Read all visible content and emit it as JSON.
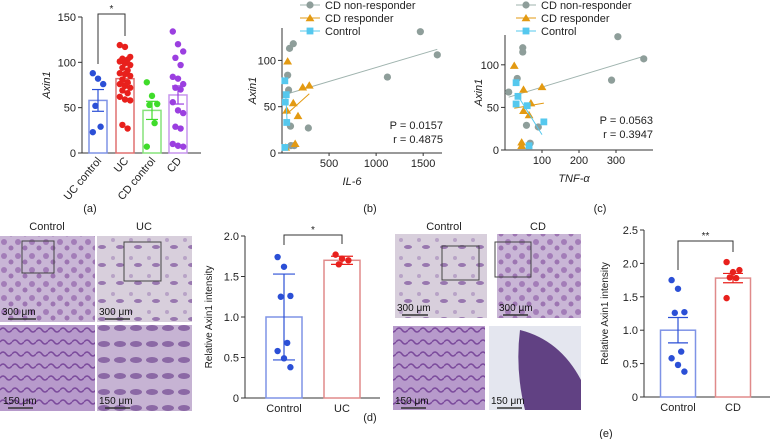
{
  "panel_labels": {
    "a": "(a)",
    "b": "(b)",
    "c": "(c)",
    "d": "(d)",
    "e": "(e)"
  },
  "histology": {
    "d": {
      "titles": [
        "Control",
        "UC"
      ],
      "scale_top": "300 μm",
      "scale_bottom": "150 μm"
    },
    "e": {
      "titles": [
        "Control",
        "CD"
      ],
      "scale_top": "300 μm",
      "scale_bottom": "150 μm"
    }
  },
  "colors": {
    "uc_control": "#2b4fd6",
    "uc": "#e8201c",
    "cd_control": "#3fdc2a",
    "cd": "#9b3fe0",
    "nonresponder": "#8e9e9a",
    "responder": "#e39a12",
    "control_sq": "#55c8ee",
    "bar_blue": "#7f93e6",
    "bar_red": "#e08a8a"
  },
  "chart_data": [
    {
      "id": "a",
      "type": "bar",
      "title": "",
      "xlabel": "",
      "ylabel": "Axin1",
      "ylim": [
        0,
        150
      ],
      "yticks": [
        "0",
        "50",
        "100",
        "150"
      ],
      "categories": [
        "UC control",
        "UC",
        "CD control",
        "CD"
      ],
      "means": [
        58,
        82,
        47,
        64
      ],
      "sem": [
        12,
        5,
        10,
        10
      ],
      "points": [
        [
          88,
          82,
          76,
          52,
          29,
          23
        ],
        [
          119,
          117,
          106,
          104,
          103,
          101,
          99,
          97,
          94,
          91,
          88,
          87,
          85,
          81,
          78,
          76,
          74,
          72,
          69,
          66,
          62,
          59,
          58,
          31,
          27
        ],
        [
          78,
          63,
          54,
          53,
          33,
          7
        ],
        [
          134,
          120,
          112,
          105,
          97,
          84,
          82,
          76,
          72,
          70,
          56,
          47,
          44,
          29,
          27,
          10,
          8,
          7
        ]
      ],
      "significance": [
        {
          "from": "UC control",
          "to": "UC",
          "label": "*"
        }
      ]
    },
    {
      "id": "b",
      "type": "scatter",
      "xlabel": "IL-6",
      "ylabel": "Axin1",
      "xlim": [
        0,
        1700
      ],
      "ylim": [
        0,
        135
      ],
      "xticks": [
        "500",
        "1000",
        "1500"
      ],
      "yticks": [
        "0",
        "50",
        "100"
      ],
      "legend": [
        "CD non-responder",
        "CD responder",
        "Control"
      ],
      "legend_position": "top-left",
      "annotation": {
        "p": "P = 0.0157",
        "r": "r = 0.4875"
      },
      "series": [
        {
          "name": "CD non-responder",
          "x": [
            80,
            120,
            60,
            70,
            90,
            1470,
            1650,
            1120,
            280,
            130,
            95
          ],
          "y": [
            113,
            118,
            84,
            68,
            29,
            131,
            106,
            82,
            27,
            8,
            8
          ],
          "fit": [
            [
              60,
              64
            ],
            [
              1650,
              112
            ]
          ]
        },
        {
          "name": "CD responder",
          "x": [
            60,
            220,
            290,
            120,
            50,
            170,
            140,
            40
          ],
          "y": [
            99,
            71,
            73,
            54,
            46,
            40,
            10,
            6
          ],
          "fit": [
            [
              50,
              42
            ],
            [
              290,
              64
            ]
          ]
        },
        {
          "name": "Control",
          "x": [
            30,
            45,
            35,
            50,
            30
          ],
          "y": [
            78,
            63,
            55,
            33,
            6
          ],
          "fit": [
            [
              40,
              63
            ],
            [
              55,
              32
            ]
          ]
        }
      ]
    },
    {
      "id": "c",
      "type": "scatter",
      "xlabel": "TNF-α",
      "ylabel": "Axin1",
      "xlim": [
        0,
        400
      ],
      "ylim": [
        0,
        135
      ],
      "xticks": [
        "100",
        "200",
        "300"
      ],
      "yticks": [
        "0",
        "50",
        "100"
      ],
      "legend": [
        "CD non-responder",
        "CD responder",
        "Control"
      ],
      "legend_position": "top-left",
      "annotation": {
        "p": "P = 0.0563",
        "r": "r = 0.3947"
      },
      "series": [
        {
          "name": "CD non-responder",
          "x": [
            48,
            48,
            33,
            10,
            305,
            375,
            288,
            58,
            90,
            68
          ],
          "y": [
            120,
            115,
            84,
            68,
            133,
            107,
            82,
            29,
            27,
            8
          ],
          "fit": [
            [
              10,
              62
            ],
            [
              375,
              110
            ]
          ]
        },
        {
          "name": "CD responder",
          "x": [
            25,
            50,
            100,
            70,
            50,
            65,
            45,
            45
          ],
          "y": [
            99,
            71,
            74,
            55,
            46,
            41,
            9,
            5
          ],
          "fit": [
            [
              25,
              49
            ],
            [
              105,
              55
            ]
          ]
        },
        {
          "name": "Control",
          "x": [
            30,
            35,
            30,
            60,
            105,
            65
          ],
          "y": [
            79,
            63,
            54,
            52,
            33,
            5
          ],
          "fit": [
            [
              40,
              60
            ],
            [
              100,
              18
            ]
          ]
        }
      ]
    },
    {
      "id": "d",
      "type": "bar",
      "ylabel": "Relative Axin1 intensity",
      "ylim": [
        0,
        2.0
      ],
      "yticks": [
        "0",
        "0.5",
        "1.0",
        "1.5",
        "2.0"
      ],
      "categories": [
        "Control",
        "UC"
      ],
      "means": [
        1.0,
        1.7
      ],
      "sd": [
        0.53,
        0.05
      ],
      "points": [
        [
          1.74,
          1.62,
          1.26,
          1.25,
          0.68,
          0.58,
          0.49,
          0.38
        ],
        [
          1.77,
          1.72,
          1.7,
          1.65
        ]
      ],
      "significance": [
        {
          "from": "Control",
          "to": "UC",
          "label": "*"
        }
      ]
    },
    {
      "id": "e",
      "type": "bar",
      "ylabel": "Relative Axin1 intensity",
      "ylim": [
        0,
        2.5
      ],
      "yticks": [
        "0",
        "0.5",
        "1.0",
        "1.5",
        "2.0",
        "2.5"
      ],
      "categories": [
        "Control",
        "CD"
      ],
      "means": [
        1.0,
        1.78
      ],
      "sem": [
        0.19,
        0.07
      ],
      "points": [
        [
          1.75,
          1.62,
          1.27,
          1.26,
          0.68,
          0.58,
          0.48,
          0.38
        ],
        [
          2.02,
          1.87,
          1.9,
          1.79,
          1.78,
          1.48
        ]
      ],
      "significance": [
        {
          "from": "Control",
          "to": "CD",
          "label": "**"
        }
      ]
    }
  ]
}
